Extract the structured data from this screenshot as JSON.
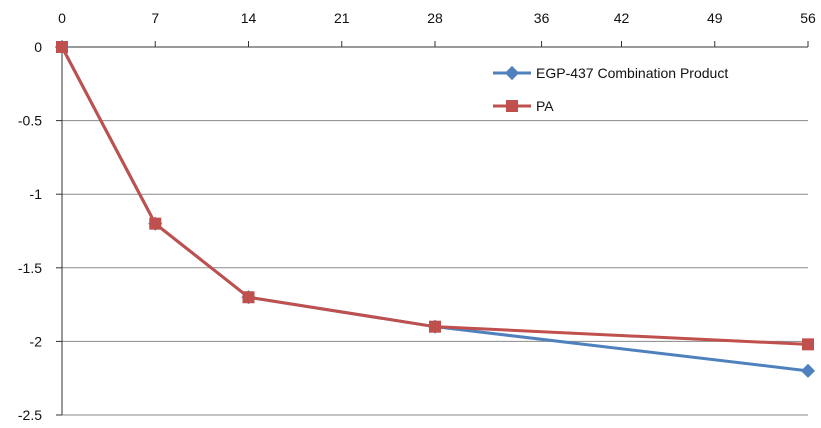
{
  "chart_data": {
    "type": "line",
    "title": "",
    "xlabel": "",
    "ylabel": "",
    "x": [
      0,
      7,
      14,
      21,
      28,
      36,
      42,
      49,
      56
    ],
    "x_tick_labels": [
      "0",
      "7",
      "14",
      "21",
      "28",
      "36",
      "42",
      "49",
      "56"
    ],
    "x_axis_position": "top",
    "y_tick_labels": [
      "0",
      "-0.5",
      "-1",
      "-1.5",
      "-2",
      "-2.5"
    ],
    "ylim": [
      -2.5,
      0
    ],
    "grid": "horizontal",
    "legend": "top-right",
    "series": [
      {
        "name": "EGP-437 Combination Product",
        "color": "#4f81bd",
        "marker": "diamond",
        "points": [
          [
            0,
            0
          ],
          [
            7,
            -1.2
          ],
          [
            14,
            -1.7
          ],
          [
            28,
            -1.9
          ],
          [
            56,
            -2.2
          ]
        ]
      },
      {
        "name": "PA",
        "color": "#c0504d",
        "marker": "square",
        "points": [
          [
            0,
            0
          ],
          [
            7,
            -1.2
          ],
          [
            14,
            -1.7
          ],
          [
            28,
            -1.9
          ],
          [
            56,
            -2.02
          ]
        ]
      }
    ]
  }
}
